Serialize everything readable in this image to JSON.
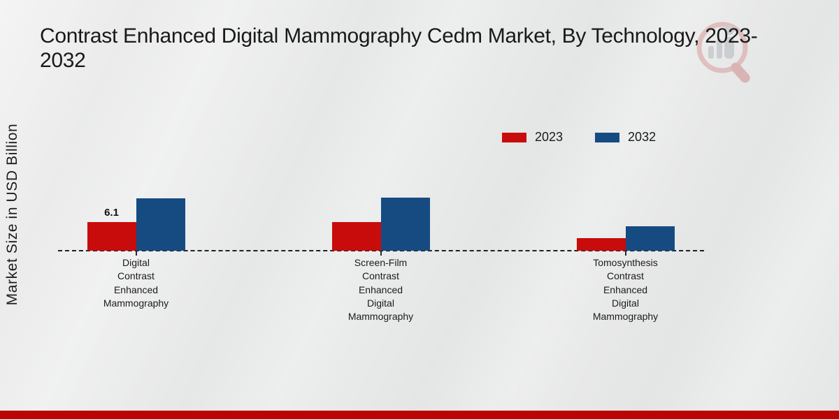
{
  "title": {
    "lines": [
      "Contrast Enhanced Digital Mammography Cedm Market, By Technology, 2023-",
      "2032"
    ]
  },
  "chart_data": {
    "type": "bar",
    "title": "Contrast Enhanced Digital Mammography Cedm Market, By Technology, 2023-2032",
    "ylabel": "Market Size in USD Billion",
    "xlabel": "",
    "units": "USD Billion",
    "grid": false,
    "legend_position": "top-right",
    "baseline_style": "dashed",
    "ylim": [
      0,
      12
    ],
    "categories": [
      "Digital Contrast Enhanced Mammography",
      "Screen-Film Contrast Enhanced Digital Mammography",
      "Tomosynthesis Contrast Enhanced Digital Mammography"
    ],
    "categories_display": [
      [
        "Digital",
        "Contrast",
        "Enhanced",
        "Mammography"
      ],
      [
        "Screen-Film",
        "Contrast",
        "Enhanced",
        "Digital",
        "Mammography"
      ],
      [
        "Tomosynthesis",
        "Contrast",
        "Enhanced",
        "Digital",
        "Mammography"
      ]
    ],
    "series": [
      {
        "name": "2023",
        "color": "#c80c0c",
        "values": [
          6.1,
          6.1,
          2.7
        ]
      },
      {
        "name": "2032",
        "color": "#164b82",
        "values": [
          11.2,
          11.3,
          5.2
        ]
      }
    ],
    "data_labels": [
      {
        "series_index": 0,
        "category_index": 0,
        "text": "6.1"
      }
    ]
  },
  "branding": {
    "watermark_icon": "magnifier-bar-chart-logo",
    "watermark_ring_color": "#d89c9c",
    "watermark_bar_color": "#b4b7ba",
    "footer_bar_color": "#b90605"
  }
}
